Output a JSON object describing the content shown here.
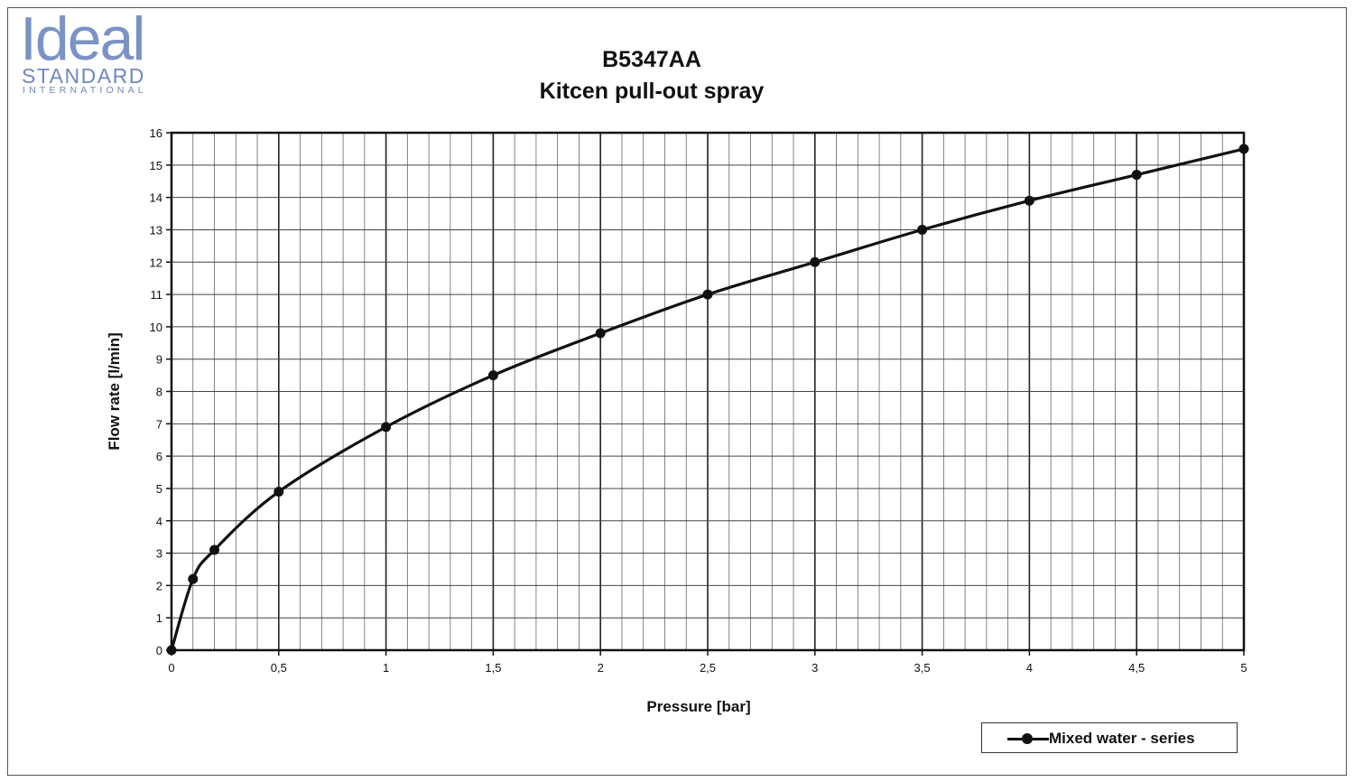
{
  "brand": {
    "name": "Ideal",
    "line2": "STANDARD",
    "line3": "INTERNATIONAL"
  },
  "chart_data": {
    "type": "line",
    "title": "B5347AA",
    "subtitle": "Kitcen pull-out spray",
    "xlabel": "Pressure [bar]",
    "ylabel": "Flow rate [l/min]",
    "xlim": [
      0,
      5
    ],
    "ylim": [
      0,
      16
    ],
    "x_ticks": [
      0,
      0.5,
      1,
      1.5,
      2,
      2.5,
      3,
      3.5,
      4,
      4.5,
      5
    ],
    "x_tick_labels": [
      "0",
      "0,5",
      "1",
      "1,5",
      "2",
      "2,5",
      "3",
      "3,5",
      "4",
      "4,5",
      "5"
    ],
    "y_ticks": [
      0,
      1,
      2,
      3,
      4,
      5,
      6,
      7,
      8,
      9,
      10,
      11,
      12,
      13,
      14,
      15,
      16
    ],
    "y_tick_labels": [
      "0",
      "1",
      "2",
      "3",
      "4",
      "5",
      "6",
      "7",
      "8",
      "9",
      "10",
      "11",
      "12",
      "13",
      "14",
      "15",
      "16"
    ],
    "grid": true,
    "legend_position": "bottom-right",
    "series": [
      {
        "name": "Mixed water - series",
        "color": "#111111",
        "x": [
          0,
          0.1,
          0.2,
          0.5,
          1,
          1.5,
          2,
          2.5,
          3,
          3.5,
          4,
          4.5,
          5
        ],
        "y": [
          0,
          2.2,
          3.1,
          4.9,
          6.9,
          8.5,
          9.8,
          11.0,
          12.0,
          13.0,
          13.9,
          14.7,
          15.5
        ]
      }
    ]
  }
}
